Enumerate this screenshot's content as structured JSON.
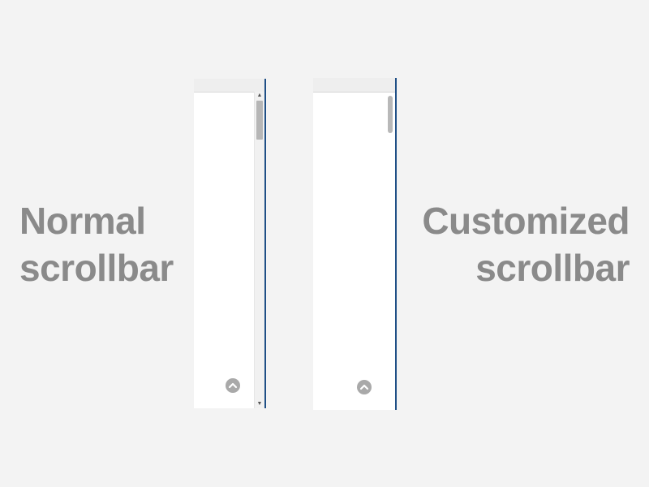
{
  "labels": {
    "normal": [
      "Normal",
      "scrollbar"
    ],
    "customized": [
      "Customized",
      "scrollbar"
    ]
  },
  "panels": {
    "normal": {
      "scrollbar": {
        "type": "native",
        "thumb_position_fraction": 0.0,
        "thumb_size_fraction": 0.13
      },
      "icons": {
        "scroll_top": "chevron-up-circle-icon",
        "arrow_up": "scroll-arrow-up-icon",
        "arrow_down": "scroll-arrow-down-icon"
      },
      "arrow_glyphs": {
        "up": "▲",
        "down": "▼"
      }
    },
    "customized": {
      "scrollbar": {
        "type": "custom",
        "thumb_position_fraction": 0.0,
        "thumb_size_fraction": 0.12
      },
      "icons": {
        "scroll_top": "chevron-up-circle-icon"
      }
    }
  },
  "colors": {
    "background": "#f3f3f3",
    "caption": "#8a8a8a",
    "panel": "#ffffff",
    "edge_line": "#1f4f86",
    "thumb": "#b8b8b8"
  }
}
